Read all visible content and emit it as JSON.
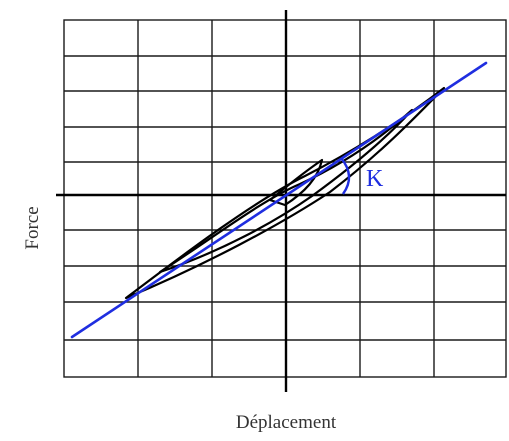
{
  "diagram": {
    "xlabel": "Déplacement",
    "ylabel": "Force",
    "annotation": "K",
    "colors": {
      "grid": "#1a1a1a",
      "axis": "#000000",
      "loop": "#000000",
      "stiffness_line": "#1f2ee0",
      "label": "#333333"
    }
  }
}
